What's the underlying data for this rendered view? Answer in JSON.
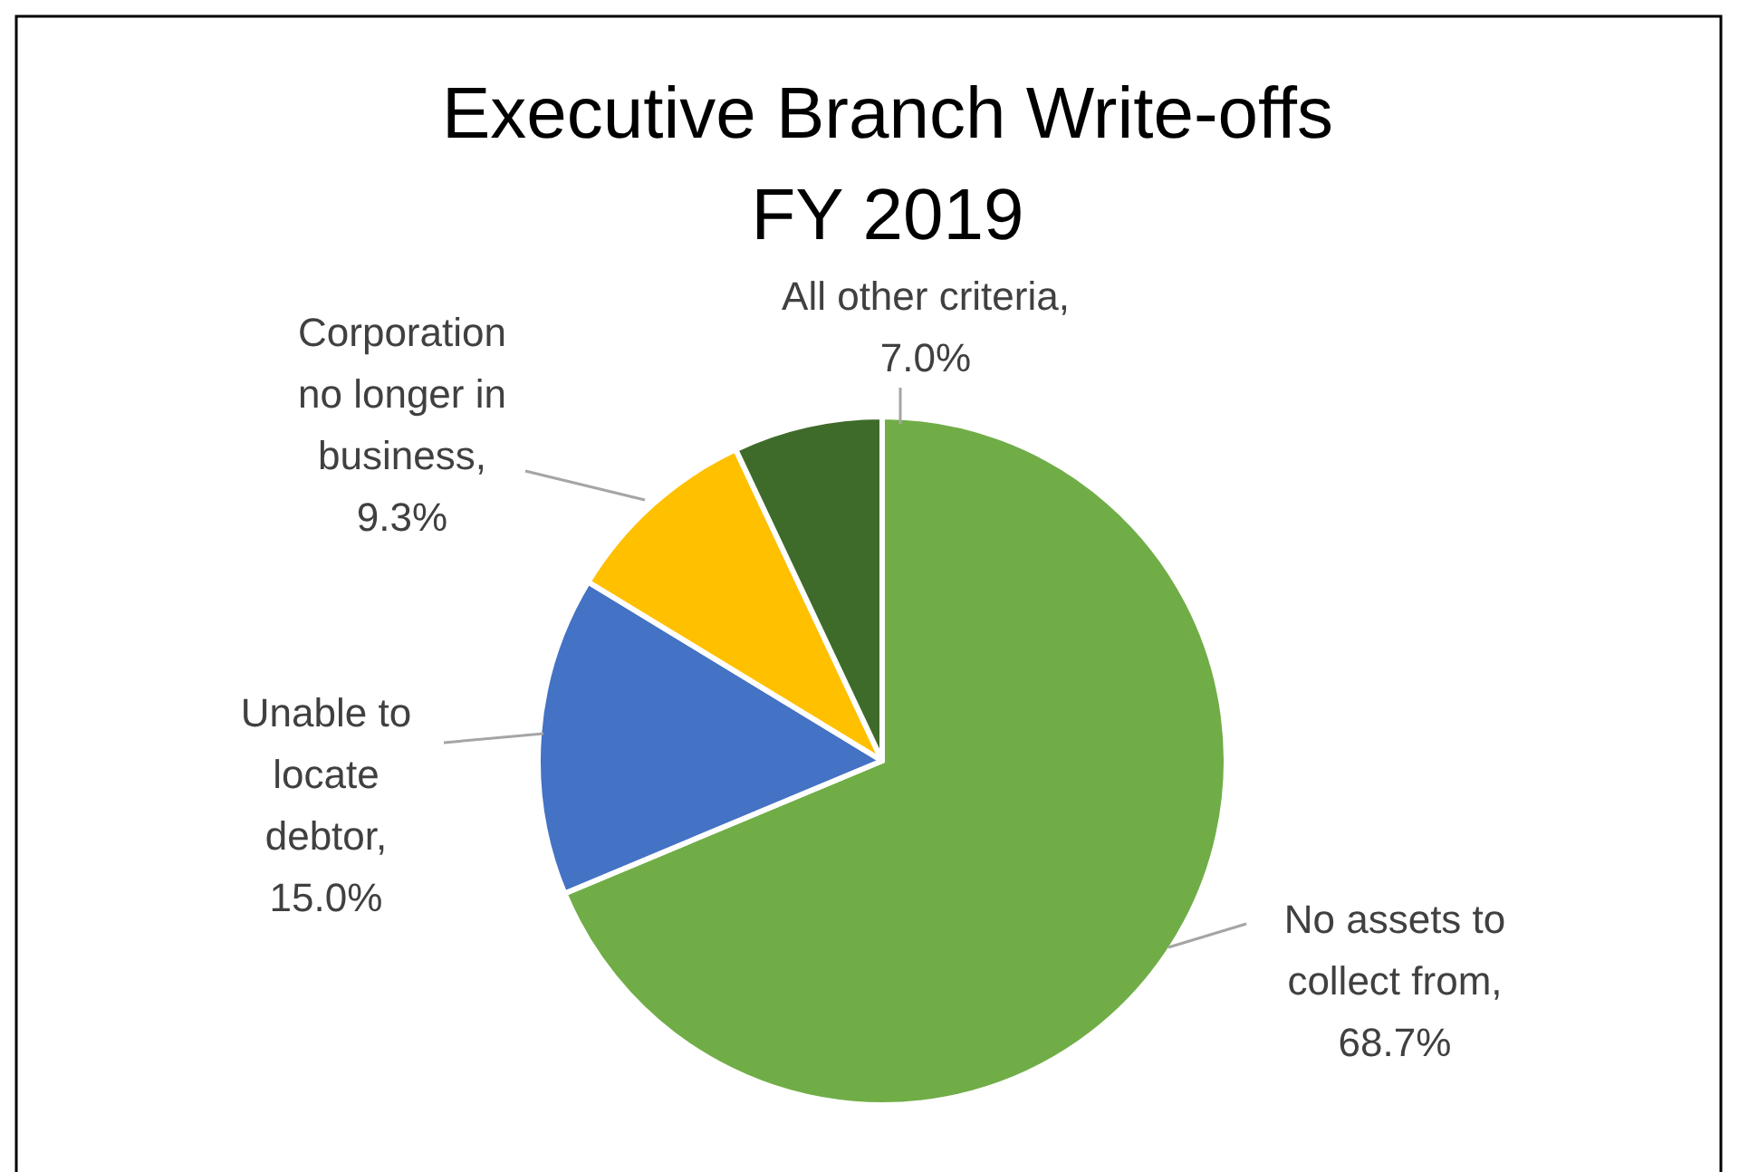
{
  "chart_data": {
    "type": "pie",
    "title": "Executive Branch Write-offs FY 2019",
    "categories": [
      "No assets to collect from",
      "Unable to locate debtor",
      "Corporation no longer in business",
      "All other criteria"
    ],
    "values": [
      68.7,
      15.0,
      9.3,
      7.0
    ],
    "value_labels": [
      ", 68.7%",
      ", 15.0%",
      ", 9.3%",
      ", 7.0%"
    ],
    "colors": [
      "#70ad47",
      "#4472c4",
      "#ffc000",
      "#3f6b2a"
    ]
  }
}
